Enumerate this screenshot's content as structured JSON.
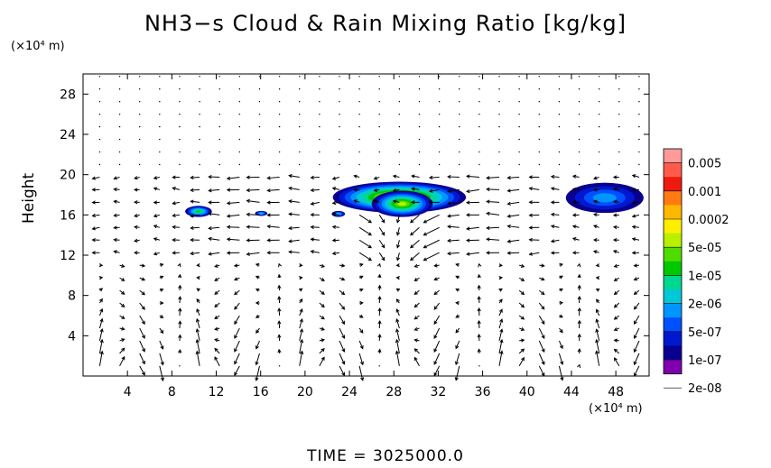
{
  "chart_data": {
    "type": "heatmap",
    "title": "NH3−s Cloud & Rain Mixing Ratio [kg/kg]",
    "ylabel": "Height",
    "y_unit": "(×10⁴ m)",
    "x_unit": "(×10⁴ m)",
    "xlim": [
      0,
      51
    ],
    "ylim": [
      0,
      30
    ],
    "x_ticks": [
      4,
      8,
      12,
      16,
      20,
      24,
      28,
      32,
      36,
      40,
      44,
      48
    ],
    "y_ticks": [
      4,
      8,
      12,
      16,
      20,
      24,
      28
    ],
    "colorbar": {
      "labels": [
        "0.005",
        "0.001",
        "0.0002",
        "5e-05",
        "1e-05",
        "2e-06",
        "5e-07",
        "1e-07",
        "2e-08"
      ],
      "colors": [
        "#ff9a9a",
        "#ff5a4a",
        "#ee1a10",
        "#ff7a10",
        "#ffb800",
        "#ffee00",
        "#b8f000",
        "#50dc00",
        "#00c800",
        "#00d890",
        "#00c8d8",
        "#0096ff",
        "#0050ff",
        "#0018d0",
        "#0a0090",
        "#8000b0"
      ]
    },
    "regions": [
      {
        "name": "main-cloud",
        "x": [
          22.5,
          34.5
        ],
        "y": [
          16.2,
          19.3
        ],
        "level": 0.8
      },
      {
        "name": "main-core",
        "x": [
          26,
          31.5
        ],
        "y": [
          15.8,
          18.4
        ],
        "level": 0.6
      },
      {
        "name": "left-cloud",
        "x": [
          9.2,
          11.6
        ],
        "y": [
          15.8,
          16.9
        ],
        "level": 0.5
      },
      {
        "name": "small-cloud-16",
        "x": [
          15.5,
          16.6
        ],
        "y": [
          15.9,
          16.4
        ],
        "level": 0.3
      },
      {
        "name": "small-cloud-23",
        "x": [
          22.4,
          23.6
        ],
        "y": [
          15.8,
          16.4
        ],
        "level": 0.3
      },
      {
        "name": "right-cloud",
        "x": [
          43.5,
          50.5
        ],
        "y": [
          16.2,
          19.2
        ],
        "level": 0.25
      }
    ]
  },
  "footer": {
    "time_text": "TIME  =  3025000.0"
  }
}
